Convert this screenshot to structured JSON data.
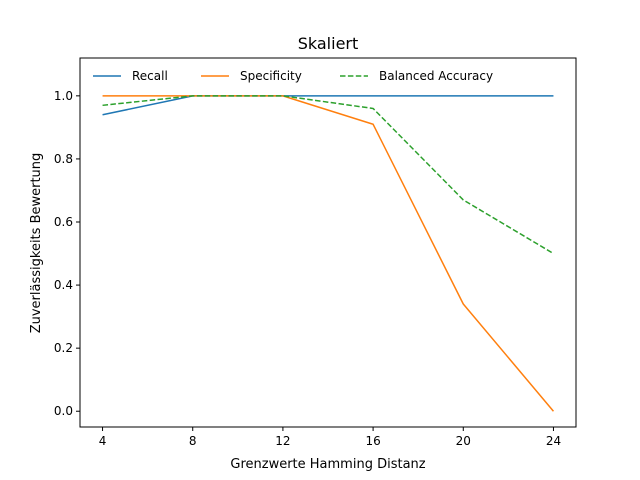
{
  "chart_data": {
    "type": "line",
    "title": "Skaliert",
    "xlabel": "Grenzwerte Hamming Distanz",
    "ylabel": "Zuverlässigkeits Bewertung",
    "x": [
      4,
      8,
      12,
      16,
      20,
      24
    ],
    "xticks": [
      "4",
      "8",
      "12",
      "16",
      "20",
      "24"
    ],
    "yticks": [
      "0.0",
      "0.2",
      "0.4",
      "0.6",
      "0.8",
      "1.0"
    ],
    "xlim": [
      3,
      25
    ],
    "ylim": [
      -0.05,
      1.12
    ],
    "grid": false,
    "legend_position": "top-left",
    "series": [
      {
        "name": "Recall",
        "color": "#1f77b4",
        "dash": "solid",
        "values": [
          0.94,
          1.0,
          1.0,
          1.0,
          1.0,
          1.0
        ]
      },
      {
        "name": "Specificity",
        "color": "#ff7f0e",
        "dash": "solid",
        "values": [
          1.0,
          1.0,
          1.0,
          0.91,
          0.34,
          0.0
        ]
      },
      {
        "name": "Balanced Accuracy",
        "color": "#2ca02c",
        "dash": "dashed",
        "values": [
          0.97,
          1.0,
          1.0,
          0.96,
          0.67,
          0.5
        ]
      }
    ]
  }
}
